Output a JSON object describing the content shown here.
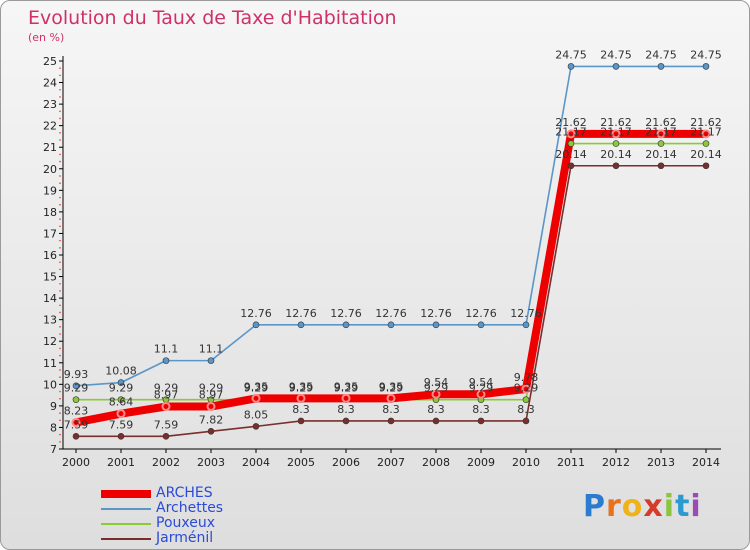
{
  "chart_data": {
    "type": "line",
    "title": "Evolution du Taux de Taxe d'Habitation",
    "ylabel": "(en %)",
    "x": [
      "2000",
      "2001",
      "2002",
      "2003",
      "2004",
      "2005",
      "2006",
      "2007",
      "2008",
      "2009",
      "2010",
      "2011",
      "2012",
      "2013",
      "2014"
    ],
    "ylim": [
      7,
      25
    ],
    "yticks": [
      7,
      8,
      9,
      10,
      11,
      12,
      13,
      14,
      15,
      16,
      17,
      18,
      19,
      20,
      21,
      22,
      23,
      24,
      25
    ],
    "grid": false,
    "legend_position": "bottom-left",
    "series": [
      {
        "name": "ARCHES",
        "color": "#ee0000",
        "values": [
          8.23,
          8.64,
          8.97,
          8.97,
          9.35,
          9.35,
          9.35,
          9.35,
          9.54,
          9.54,
          9.78,
          21.62,
          21.62,
          21.62,
          21.62
        ],
        "labels": [
          "8.23",
          "8.64",
          "8.97",
          "8.97",
          "9.35",
          "9.35",
          "9.35",
          "9.35",
          "9.54",
          "9.54",
          "9.78",
          "21.62",
          "21.62",
          "21.62",
          "21.62"
        ]
      },
      {
        "name": "Archettes",
        "color": "#5b96c8",
        "values": [
          9.93,
          10.08,
          11.1,
          11.1,
          12.76,
          12.76,
          12.76,
          12.76,
          12.76,
          12.76,
          12.76,
          24.75,
          24.75,
          24.75,
          24.75
        ],
        "labels": [
          "9.93",
          "10.08",
          "11.1",
          "11.1",
          "12.76",
          "12.76",
          "12.76",
          "12.76",
          "12.76",
          "12.76",
          "12.76",
          "24.75",
          "24.75",
          "24.75",
          "24.75"
        ]
      },
      {
        "name": "Pouxeux",
        "color": "#88cc33",
        "values": [
          9.29,
          9.29,
          9.29,
          9.29,
          9.29,
          9.29,
          9.29,
          9.29,
          9.29,
          9.29,
          9.29,
          21.17,
          21.17,
          21.17,
          21.17
        ],
        "labels": [
          "9.29",
          "9.29",
          "9.29",
          "9.29",
          "9.29",
          "9.29",
          "9.29",
          "9.29",
          "9.29",
          "9.29",
          "9.29",
          "21.17",
          "21.17",
          "21.17",
          "21.17"
        ]
      },
      {
        "name": "Jarménil",
        "color": "#7a2e2e",
        "values": [
          7.59,
          7.59,
          7.59,
          7.82,
          8.05,
          8.3,
          8.3,
          8.3,
          8.3,
          8.3,
          8.3,
          20.14,
          20.14,
          20.14,
          20.14
        ],
        "labels": [
          "7.59",
          "7.59",
          "7.59",
          "7.82",
          "8.05",
          "8.3",
          "8.3",
          "8.3",
          "8.3",
          "8.3",
          "8.3",
          "20.14",
          "20.14",
          "20.14",
          "20.14"
        ]
      }
    ]
  },
  "legend": [
    {
      "label": "ARCHES"
    },
    {
      "label": "Archettes"
    },
    {
      "label": "Pouxeux"
    },
    {
      "label": "Jarménil"
    }
  ],
  "brand": {
    "letters": [
      "P",
      "r",
      "o",
      "x",
      "i",
      "t",
      "i"
    ],
    "colors": [
      "#2b7bd0",
      "#e8731c",
      "#f0b21a",
      "#d63a2b",
      "#8bc53f",
      "#2b9ad0",
      "#9b4bb5"
    ]
  }
}
